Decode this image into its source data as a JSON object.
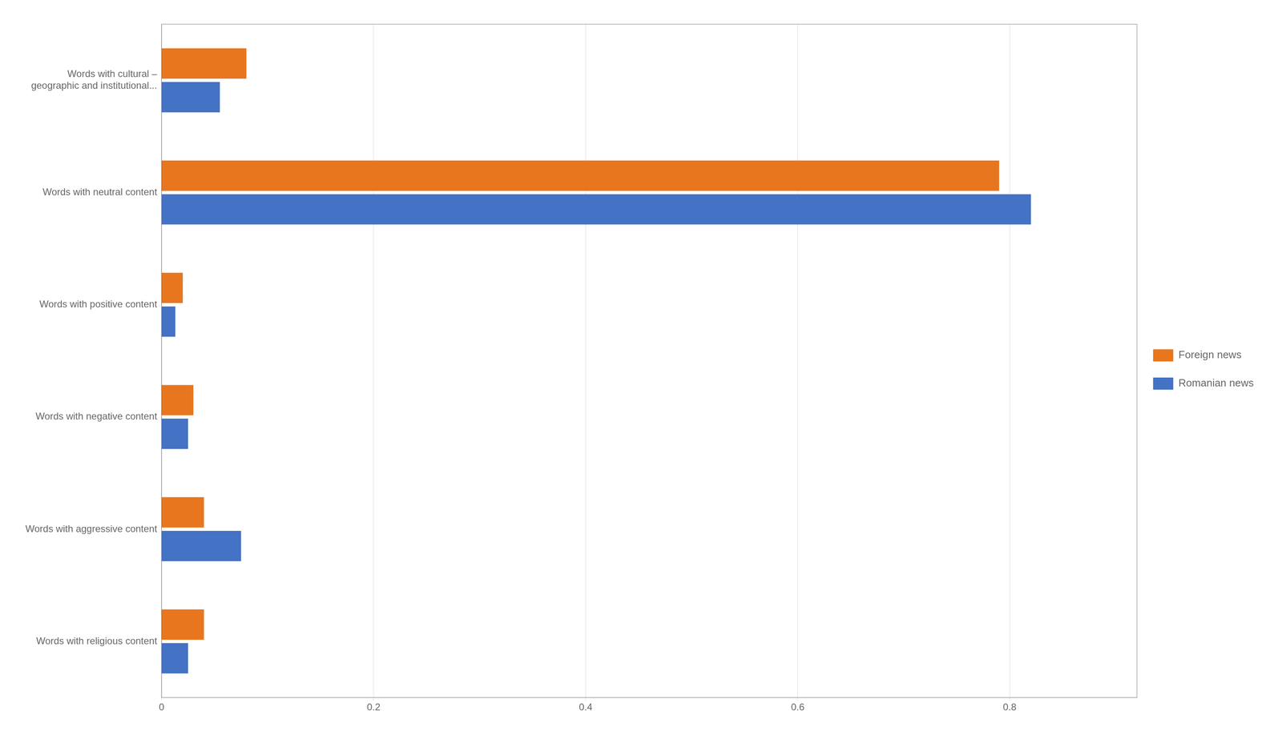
{
  "chart_data": {
    "type": "bar",
    "orientation": "horizontal",
    "categories": [
      "Words with cultural –\ngeographic and institutional...",
      "Words with neutral content",
      "Words with positive content",
      "Words with negative content",
      "Words with aggressive content",
      "Words with religious content"
    ],
    "series": [
      {
        "name": "Foreign news",
        "color": "#E8761E",
        "values": [
          0.08,
          0.79,
          0.02,
          0.03,
          0.04,
          0.04
        ]
      },
      {
        "name": "Romanian news",
        "color": "#4472C4",
        "values": [
          0.055,
          0.82,
          0.013,
          0.025,
          0.075,
          0.025
        ]
      }
    ],
    "xlim": [
      0,
      0.92
    ],
    "xticks": [
      0,
      0.2,
      0.4,
      0.6,
      0.8
    ],
    "grid": true,
    "legend": "right"
  }
}
